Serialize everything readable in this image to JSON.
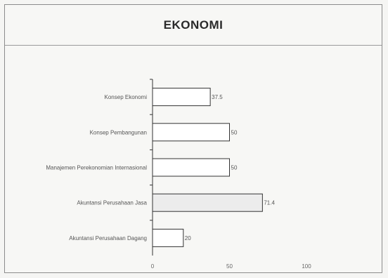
{
  "chart_data": {
    "type": "bar",
    "orientation": "horizontal",
    "title": "EKONOMI",
    "categories": [
      "Konsep Ekonomi",
      "Konsep Pembangunan",
      "Manajemen Perekonomian Internasional",
      "Akuntansi Perusahaan Jasa",
      "Akuntansi Perusahaan Dagang"
    ],
    "values": [
      37.5,
      50,
      50,
      71.4,
      20
    ],
    "value_labels": [
      "37.5",
      "50",
      "50",
      "71.4",
      "20"
    ],
    "xlim": [
      0,
      100
    ],
    "x_ticks": [
      "0",
      "50",
      "100"
    ],
    "grid": false,
    "legend": "none",
    "colors": {
      "bar_fill": "#ffffff",
      "highlight_fill": "#ececec",
      "bar_stroke": "#333333",
      "axis": "#333333"
    },
    "highlighted_index": 3
  }
}
